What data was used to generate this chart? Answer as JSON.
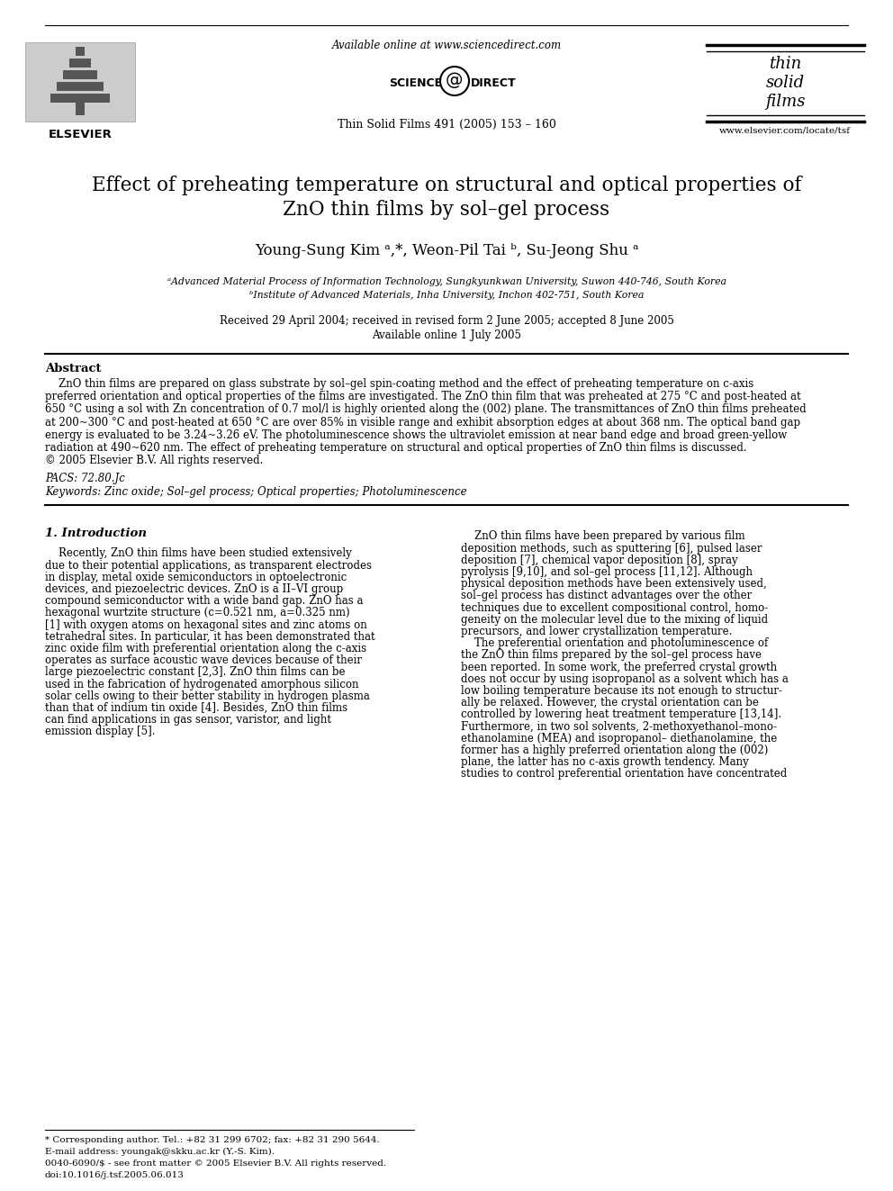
{
  "page_title_line1": "Effect of preheating temperature on structural and optical properties of",
  "page_title_line2": "ZnO thin films by sol–gel process",
  "authors": "Young-Sung Kim ᵃ,*, Weon-Pil Tai ᵇ, Su-Jeong Shu ᵃ",
  "affiliation_a": "ᵃAdvanced Material Process of Information Technology, Sungkyunkwan University, Suwon 440-746, South Korea",
  "affiliation_b": "ᵇInstitute of Advanced Materials, Inha University, Inchon 402-751, South Korea",
  "received": "Received 29 April 2004; received in revised form 2 June 2005; accepted 8 June 2005",
  "available": "Available online 1 July 2005",
  "journal": "Thin Solid Films 491 (2005) 153 – 160",
  "available_online": "Available online at www.sciencedirect.com",
  "website": "www.elsevier.com/locate/tsf",
  "abstract_title": "Abstract",
  "pacs": "PACS: 72.80.Jc",
  "keywords": "Keywords: Zinc oxide; Sol–gel process; Optical properties; Photoluminescence",
  "section1_title": "1. Introduction",
  "footnote_star": "* Corresponding author. Tel.: +82 31 299 6702; fax: +82 31 290 5644.",
  "footnote_email": "E-mail address: youngak@skku.ac.kr (Y.-S. Kim).",
  "footnote_issn": "0040-6090/$ - see front matter © 2005 Elsevier B.V. All rights reserved.",
  "footnote_doi": "doi:10.1016/j.tsf.2005.06.013",
  "bg_color": "#ffffff",
  "text_color": "#000000",
  "abstract_lines": [
    "    ZnO thin films are prepared on glass substrate by sol–gel spin-coating method and the effect of preheating temperature on c-axis",
    "preferred orientation and optical properties of the films are investigated. The ZnO thin film that was preheated at 275 °C and post-heated at",
    "650 °C using a sol with Zn concentration of 0.7 mol/l is highly oriented along the (002) plane. The transmittances of ZnO thin films preheated",
    "at 200~300 °C and post-heated at 650 °C are over 85% in visible range and exhibit absorption edges at about 368 nm. The optical band gap",
    "energy is evaluated to be 3.24~3.26 eV. The photoluminescence shows the ultraviolet emission at near band edge and broad green-yellow",
    "radiation at 490~620 nm. The effect of preheating temperature on structural and optical properties of ZnO thin films is discussed.",
    "© 2005 Elsevier B.V. All rights reserved."
  ],
  "left_col_lines": [
    "    Recently, ZnO thin films have been studied extensively",
    "due to their potential applications, as transparent electrodes",
    "in display, metal oxide semiconductors in optoelectronic",
    "devices, and piezoelectric devices. ZnO is a II–VI group",
    "compound semiconductor with a wide band gap. ZnO has a",
    "hexagonal wurtzite structure (c=0.521 nm, a=0.325 nm)",
    "[1] with oxygen atoms on hexagonal sites and zinc atoms on",
    "tetrahedral sites. In particular, it has been demonstrated that",
    "zinc oxide film with preferential orientation along the c-axis",
    "operates as surface acoustic wave devices because of their",
    "large piezoelectric constant [2,3]. ZnO thin films can be",
    "used in the fabrication of hydrogenated amorphous silicon",
    "solar cells owing to their better stability in hydrogen plasma",
    "than that of indium tin oxide [4]. Besides, ZnO thin films",
    "can find applications in gas sensor, varistor, and light",
    "emission display [5]."
  ],
  "right_col_lines": [
    "    ZnO thin films have been prepared by various film",
    "deposition methods, such as sputtering [6], pulsed laser",
    "deposition [7], chemical vapor deposition [8], spray",
    "pyrolysis [9,10], and sol–gel process [11,12]. Although",
    "physical deposition methods have been extensively used,",
    "sol–gel process has distinct advantages over the other",
    "techniques due to excellent compositional control, homo-",
    "geneity on the molecular level due to the mixing of liquid",
    "precursors, and lower crystallization temperature.",
    "    The preferential orientation and photoluminescence of",
    "the ZnO thin films prepared by the sol–gel process have",
    "been reported. In some work, the preferred crystal growth",
    "does not occur by using isopropanol as a solvent which has a",
    "low boiling temperature because its not enough to structur-",
    "ally be relaxed. However, the crystal orientation can be",
    "controlled by lowering heat treatment temperature [13,14].",
    "Furthermore, in two sol solvents, 2-methoxyethanol–mono-",
    "ethanolamine (MEA) and isopropanol– diethanolamine, the",
    "former has a highly preferred orientation along the (002)",
    "plane, the latter has no c-axis growth tendency. Many",
    "studies to control preferential orientation have concentrated"
  ]
}
